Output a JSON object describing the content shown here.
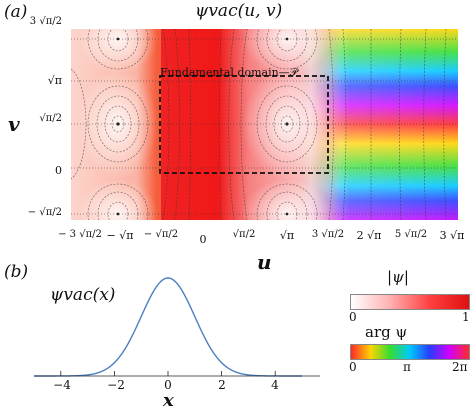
{
  "figure": {
    "panel_a": {
      "label": "(a)",
      "title": "ψvac(u, v)",
      "x_axis_label": "u",
      "y_axis_label": "v",
      "annotation": "Fundamental domain—𝒫",
      "x_ticks": [
        "− 3 √π/2",
        "− √π",
        "− √π/2",
        "0",
        "√π/2",
        "√π",
        "3 √π/2",
        "2 √π",
        "5 √π/2",
        "3 √π"
      ],
      "y_ticks": [
        "3 √π/2",
        "√π",
        "√π/2",
        "0",
        "− √π/2"
      ]
    },
    "panel_b": {
      "label": "(b)",
      "title": "ψvac(x)",
      "x_axis_label": "x",
      "x_ticks": [
        "−4",
        "−2",
        "0",
        "2",
        "4"
      ],
      "colorbar_magnitude": {
        "label": "|ψ|",
        "ticks": [
          "0",
          "1"
        ]
      },
      "colorbar_phase": {
        "label": "arg ψ",
        "ticks": [
          "0",
          "π",
          "2π"
        ]
      }
    }
  },
  "chart_data": [
    {
      "type": "heatmap",
      "title": "ψvac(u, v)",
      "xlabel": "u",
      "ylabel": "v",
      "xlim": [
        -3.0,
        5.4
      ],
      "ylim": [
        -1.0,
        2.8
      ],
      "grid": false
    },
    {
      "type": "line",
      "title": "ψvac(x)",
      "xlabel": "x",
      "ylabel": "",
      "xlim": [
        -5,
        5
      ],
      "ylim": [
        0,
        1
      ],
      "series": [
        {
          "x": [
            -5,
            -4,
            -3,
            -2.5,
            -2,
            -1.5,
            -1,
            -0.5,
            0,
            0.5,
            1,
            1.5,
            2,
            2.5,
            3,
            4,
            5
          ],
          "values": [
            0,
            0,
            0.01,
            0.04,
            0.14,
            0.32,
            0.6,
            0.88,
            1.0,
            0.88,
            0.6,
            0.32,
            0.14,
            0.04,
            0.01,
            0,
            0
          ]
        }
      ],
      "color": "#4a7fc1"
    }
  ]
}
